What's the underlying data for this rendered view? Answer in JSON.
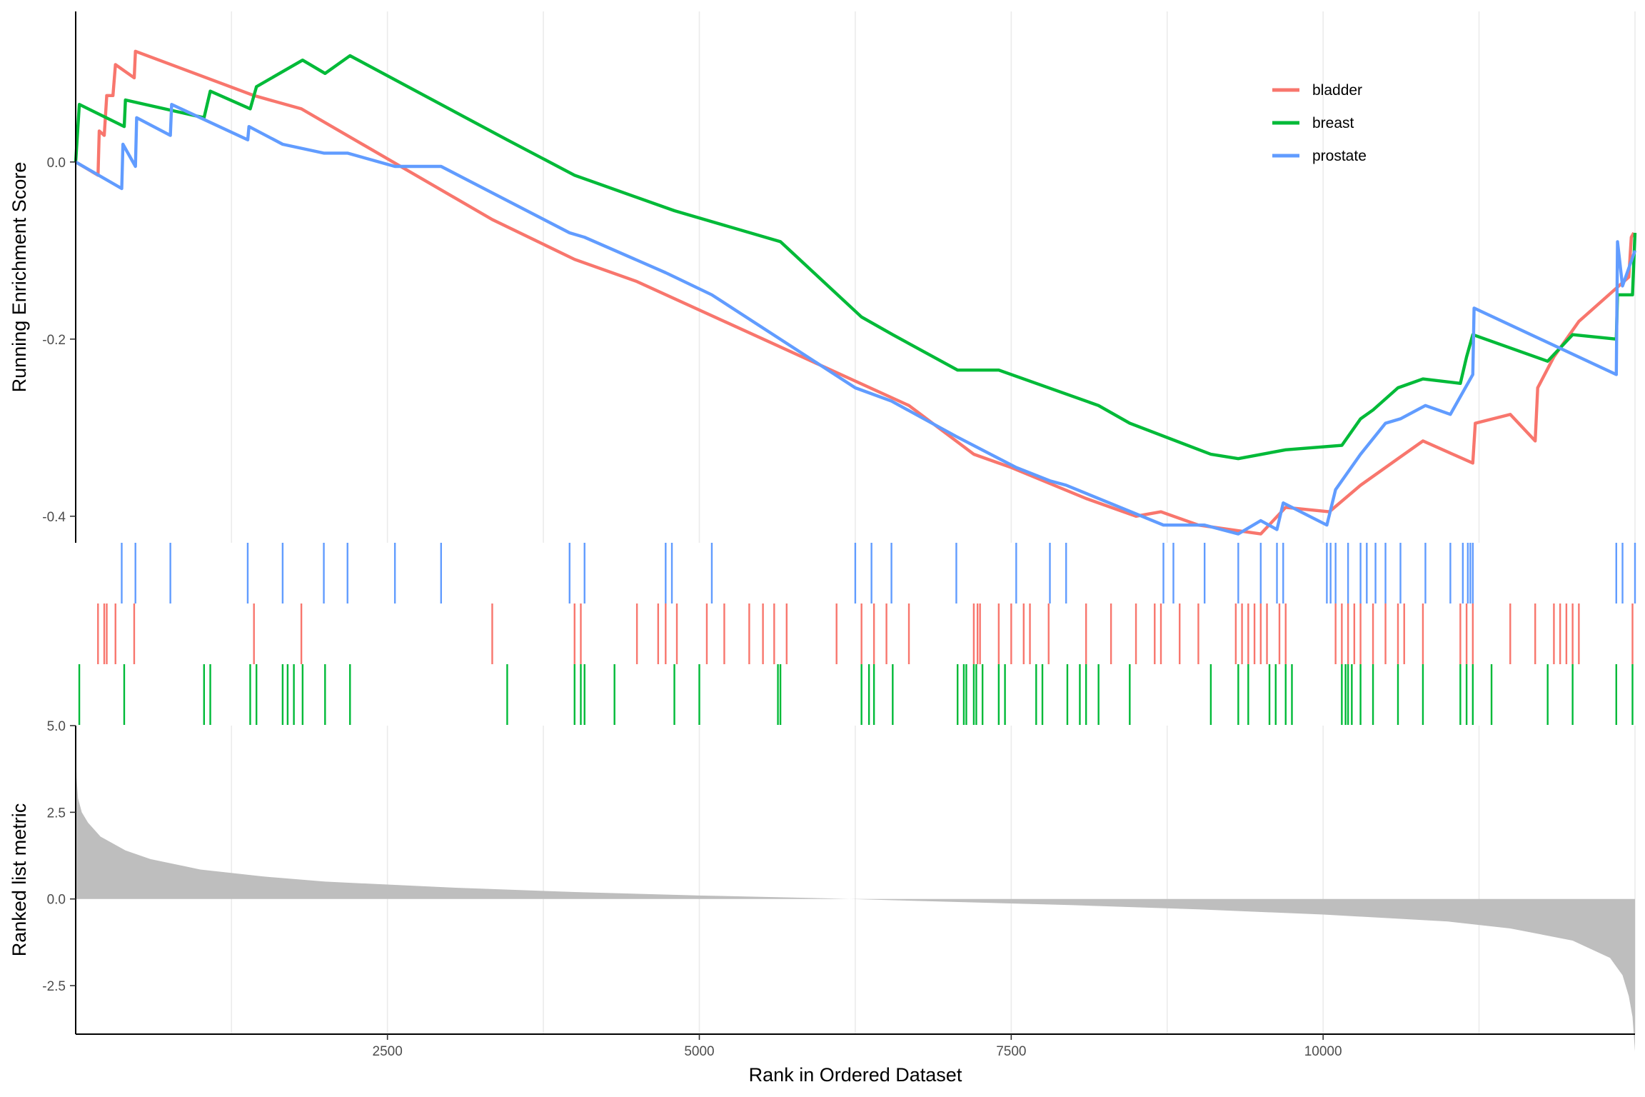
{
  "chart_data": {
    "type": "line",
    "xlabel": "Rank in Ordered Dataset",
    "xlim": [
      1,
      12500
    ],
    "x_ticks": [
      2500,
      5000,
      7500,
      10000
    ],
    "legend_position": "top-right",
    "grid": "vertical-major-and-minor",
    "panels": {
      "running_score": {
        "ylabel": "Running Enrichment Score",
        "ylim": [
          -0.43,
          0.17
        ],
        "y_ticks": [
          0.0,
          -0.2,
          -0.4
        ],
        "y_tick_labels": [
          "0.0",
          "-0.2",
          "-0.4"
        ]
      },
      "ranked_metric": {
        "ylabel": "Ranked list metric",
        "ylim": [
          -3.9,
          5.0
        ],
        "y_ticks": [
          5.0,
          2.5,
          0.0,
          -2.5
        ],
        "y_tick_labels": [
          "5.0",
          "2.5",
          "0.0",
          "-2.5"
        ]
      }
    },
    "series": [
      {
        "name": "bladder",
        "color": "#F8766D",
        "hits": [
          180,
          230,
          250,
          320,
          470,
          1430,
          1810,
          3340,
          4000,
          4050,
          4500,
          4670,
          4730,
          4820,
          5060,
          5200,
          5400,
          5510,
          5600,
          5700,
          6100,
          6300,
          6400,
          6500,
          6680,
          7200,
          7230,
          7250,
          7400,
          7500,
          7600,
          7650,
          7800,
          8100,
          8300,
          8500,
          8650,
          8700,
          8850,
          9000,
          9300,
          9350,
          9400,
          9450,
          9500,
          9550,
          9650,
          9700,
          10100,
          10150,
          10200,
          10250,
          10300,
          10400,
          10500,
          10600,
          10650,
          10800,
          11100,
          11150,
          11200,
          11500,
          11700,
          11850,
          11900,
          11950,
          12000,
          12050,
          12480
        ],
        "points": [
          [
            1,
            0.0
          ],
          [
            180,
            -0.015
          ],
          [
            190,
            0.035
          ],
          [
            230,
            0.03
          ],
          [
            250,
            0.075
          ],
          [
            300,
            0.075
          ],
          [
            320,
            0.11
          ],
          [
            470,
            0.095
          ],
          [
            480,
            0.125
          ],
          [
            1430,
            0.075
          ],
          [
            1810,
            0.06
          ],
          [
            3340,
            -0.065
          ],
          [
            4000,
            -0.11
          ],
          [
            4500,
            -0.135
          ],
          [
            5200,
            -0.18
          ],
          [
            6680,
            -0.275
          ],
          [
            7200,
            -0.33
          ],
          [
            7500,
            -0.345
          ],
          [
            8100,
            -0.38
          ],
          [
            8500,
            -0.4
          ],
          [
            8700,
            -0.395
          ],
          [
            9000,
            -0.41
          ],
          [
            9500,
            -0.42
          ],
          [
            9700,
            -0.39
          ],
          [
            10050,
            -0.395
          ],
          [
            10300,
            -0.365
          ],
          [
            10600,
            -0.335
          ],
          [
            10800,
            -0.315
          ],
          [
            11200,
            -0.34
          ],
          [
            11220,
            -0.295
          ],
          [
            11500,
            -0.285
          ],
          [
            11700,
            -0.315
          ],
          [
            11720,
            -0.255
          ],
          [
            11850,
            -0.22
          ],
          [
            12050,
            -0.18
          ],
          [
            12450,
            -0.13
          ],
          [
            12470,
            -0.085
          ],
          [
            12490,
            -0.08
          ]
        ]
      },
      {
        "name": "breast",
        "color": "#00BA38",
        "hits": [
          30,
          390,
          1030,
          1080,
          1400,
          1450,
          1660,
          1700,
          1750,
          1820,
          2000,
          2200,
          3460,
          4000,
          4050,
          4080,
          4320,
          4800,
          5000,
          5630,
          5650,
          6300,
          6360,
          6400,
          6550,
          7070,
          7120,
          7140,
          7200,
          7220,
          7270,
          7400,
          7450,
          7700,
          7750,
          7950,
          8050,
          8100,
          8200,
          8450,
          9100,
          9320,
          9400,
          9570,
          9620,
          9700,
          9750,
          10150,
          10180,
          10200,
          10230,
          10300,
          10400,
          10600,
          10800,
          11100,
          11150,
          11200,
          11350,
          11800,
          12000,
          12350,
          12480
        ],
        "points": [
          [
            1,
            0.0
          ],
          [
            30,
            0.065
          ],
          [
            390,
            0.04
          ],
          [
            400,
            0.07
          ],
          [
            1030,
            0.05
          ],
          [
            1080,
            0.08
          ],
          [
            1400,
            0.06
          ],
          [
            1450,
            0.085
          ],
          [
            1820,
            0.115
          ],
          [
            2000,
            0.1
          ],
          [
            2200,
            0.12
          ],
          [
            3460,
            0.025
          ],
          [
            4000,
            -0.015
          ],
          [
            4800,
            -0.055
          ],
          [
            5650,
            -0.09
          ],
          [
            6300,
            -0.175
          ],
          [
            6550,
            -0.195
          ],
          [
            7070,
            -0.235
          ],
          [
            7400,
            -0.235
          ],
          [
            8200,
            -0.275
          ],
          [
            8450,
            -0.295
          ],
          [
            9100,
            -0.33
          ],
          [
            9320,
            -0.335
          ],
          [
            9700,
            -0.325
          ],
          [
            10150,
            -0.32
          ],
          [
            10300,
            -0.29
          ],
          [
            10400,
            -0.28
          ],
          [
            10600,
            -0.255
          ],
          [
            10800,
            -0.245
          ],
          [
            11100,
            -0.25
          ],
          [
            11150,
            -0.22
          ],
          [
            11200,
            -0.195
          ],
          [
            11800,
            -0.225
          ],
          [
            12000,
            -0.195
          ],
          [
            12350,
            -0.2
          ],
          [
            12360,
            -0.15
          ],
          [
            12480,
            -0.15
          ],
          [
            12500,
            -0.08
          ]
        ]
      },
      {
        "name": "prostate",
        "color": "#619CFF",
        "hits": [
          370,
          480,
          760,
          1380,
          1660,
          1990,
          2180,
          2560,
          2930,
          3960,
          4080,
          4730,
          4780,
          5100,
          6250,
          6380,
          6540,
          7060,
          7540,
          7810,
          7940,
          8720,
          8800,
          9050,
          9320,
          9500,
          9630,
          9680,
          10030,
          10060,
          10100,
          10200,
          10300,
          10350,
          10420,
          10500,
          10620,
          10820,
          11020,
          11120,
          11160,
          11180,
          11200,
          12350,
          12400,
          12500
        ],
        "points": [
          [
            1,
            0.0
          ],
          [
            370,
            -0.03
          ],
          [
            380,
            0.02
          ],
          [
            480,
            -0.005
          ],
          [
            490,
            0.05
          ],
          [
            760,
            0.03
          ],
          [
            770,
            0.065
          ],
          [
            1380,
            0.025
          ],
          [
            1390,
            0.04
          ],
          [
            1660,
            0.02
          ],
          [
            1990,
            0.01
          ],
          [
            2180,
            0.01
          ],
          [
            2560,
            -0.005
          ],
          [
            2930,
            -0.005
          ],
          [
            3960,
            -0.08
          ],
          [
            4080,
            -0.085
          ],
          [
            4730,
            -0.125
          ],
          [
            5100,
            -0.15
          ],
          [
            6250,
            -0.255
          ],
          [
            6540,
            -0.27
          ],
          [
            7060,
            -0.31
          ],
          [
            7540,
            -0.345
          ],
          [
            7810,
            -0.36
          ],
          [
            7940,
            -0.365
          ],
          [
            8720,
            -0.41
          ],
          [
            9050,
            -0.41
          ],
          [
            9320,
            -0.42
          ],
          [
            9500,
            -0.405
          ],
          [
            9630,
            -0.415
          ],
          [
            9680,
            -0.385
          ],
          [
            10030,
            -0.41
          ],
          [
            10100,
            -0.37
          ],
          [
            10300,
            -0.33
          ],
          [
            10500,
            -0.295
          ],
          [
            10620,
            -0.29
          ],
          [
            10820,
            -0.275
          ],
          [
            11020,
            -0.285
          ],
          [
            11200,
            -0.24
          ],
          [
            11210,
            -0.165
          ],
          [
            12350,
            -0.24
          ],
          [
            12360,
            -0.09
          ],
          [
            12400,
            -0.14
          ],
          [
            12500,
            -0.1
          ]
        ]
      }
    ],
    "legend": [
      {
        "name": "bladder",
        "color": "#F8766D"
      },
      {
        "name": "breast",
        "color": "#00BA38"
      },
      {
        "name": "prostate",
        "color": "#619CFF"
      }
    ],
    "ranked_metric_points": [
      [
        1,
        4.7
      ],
      [
        8,
        3.5
      ],
      [
        20,
        2.9
      ],
      [
        50,
        2.5
      ],
      [
        100,
        2.2
      ],
      [
        200,
        1.8
      ],
      [
        400,
        1.4
      ],
      [
        600,
        1.15
      ],
      [
        1000,
        0.85
      ],
      [
        1500,
        0.65
      ],
      [
        2000,
        0.5
      ],
      [
        3000,
        0.33
      ],
      [
        4000,
        0.2
      ],
      [
        5000,
        0.1
      ],
      [
        6000,
        0.02
      ],
      [
        7000,
        -0.08
      ],
      [
        8000,
        -0.18
      ],
      [
        9000,
        -0.3
      ],
      [
        10000,
        -0.45
      ],
      [
        11000,
        -0.65
      ],
      [
        11500,
        -0.85
      ],
      [
        12000,
        -1.2
      ],
      [
        12300,
        -1.7
      ],
      [
        12400,
        -2.2
      ],
      [
        12450,
        -2.8
      ],
      [
        12480,
        -3.4
      ],
      [
        12500,
        -4.4
      ]
    ],
    "fill_color": "#BEBEBE"
  }
}
